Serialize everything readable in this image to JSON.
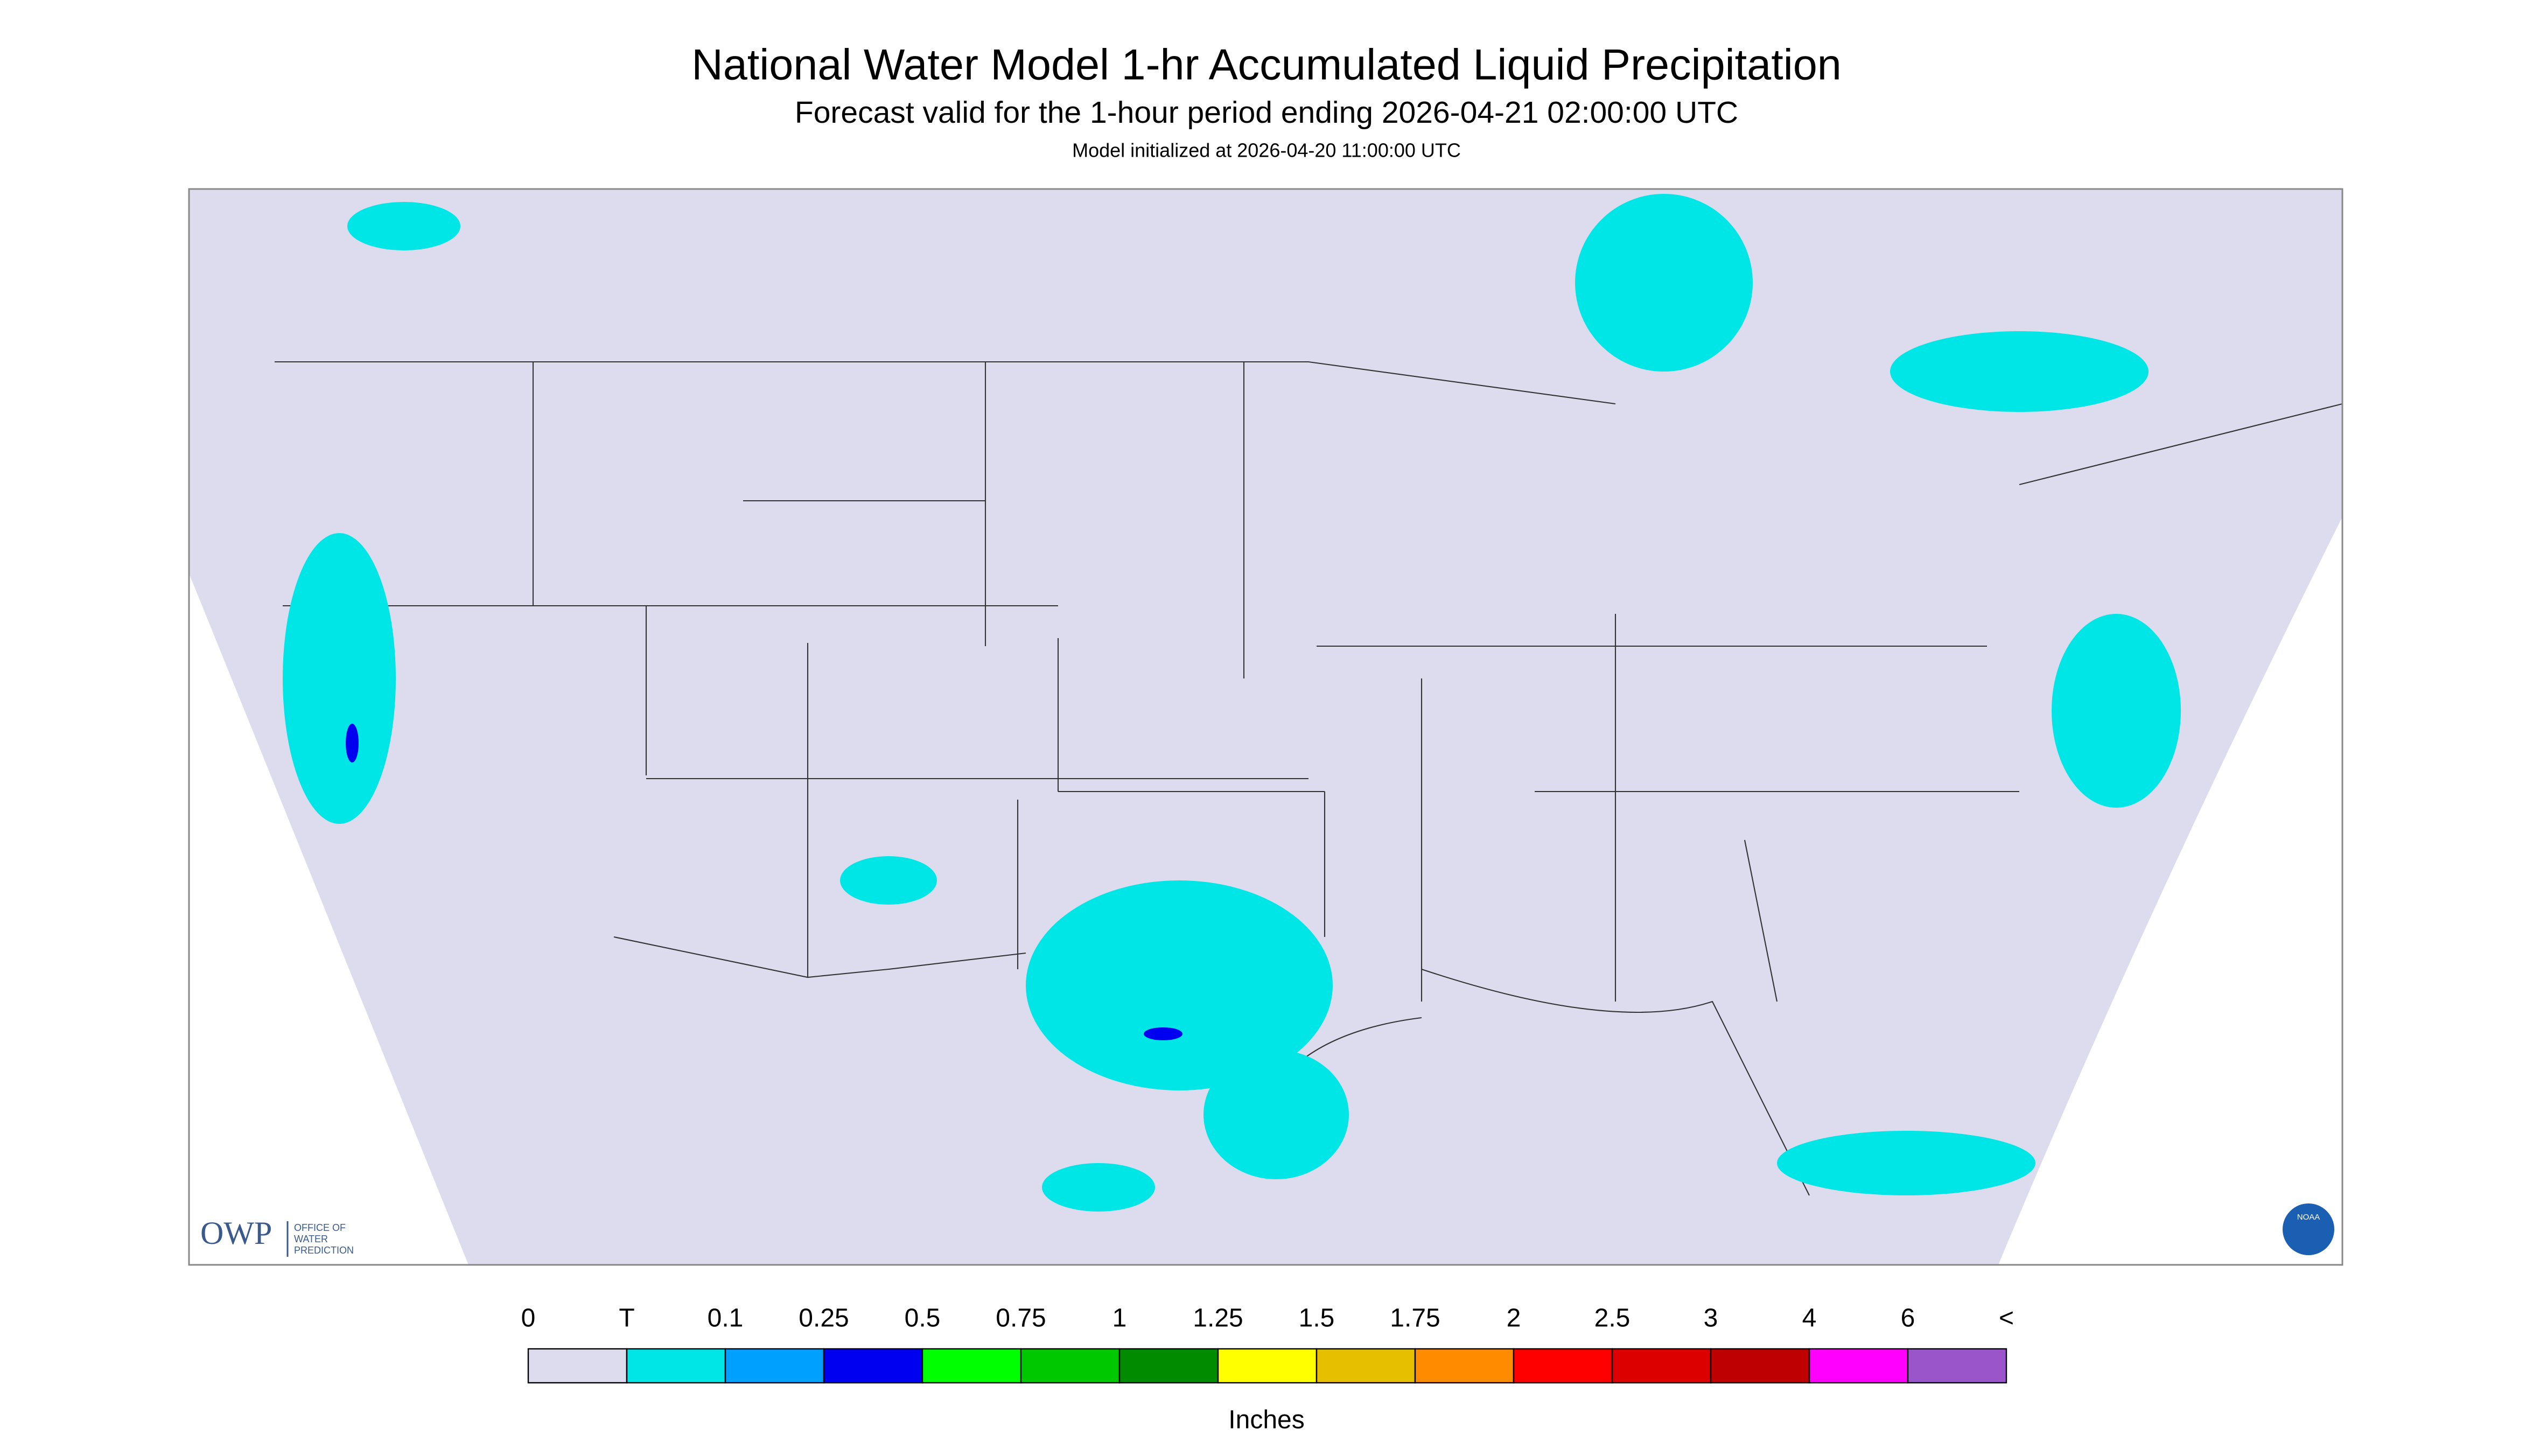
{
  "header": {
    "title": "National Water Model 1-hr Accumulated Liquid Precipitation",
    "subtitle": "Forecast valid for the 1-hour period ending 2026-04-21 02:00:00 UTC",
    "initialized": "Model initialized at 2026-04-20 11:00:00 UTC"
  },
  "logo": {
    "owp": "OWP",
    "lines": [
      "OFFICE OF",
      "WATER",
      "PREDICTION"
    ],
    "noaa": "NOAA"
  },
  "legend": {
    "labels": [
      "0",
      "T",
      "0.1",
      "0.25",
      "0.5",
      "0.75",
      "1",
      "1.25",
      "1.5",
      "1.75",
      "2",
      "2.5",
      "3",
      "4",
      "6",
      "<"
    ],
    "colors": [
      "#dcdcee",
      "#00e6e6",
      "#00a0ff",
      "#0000f0",
      "#00ff00",
      "#00c800",
      "#008c00",
      "#ffff00",
      "#e6c000",
      "#ff8c00",
      "#ff0000",
      "#dc0000",
      "#be0000",
      "#ff00ff",
      "#9955c9"
    ],
    "unit": "Inches"
  }
}
